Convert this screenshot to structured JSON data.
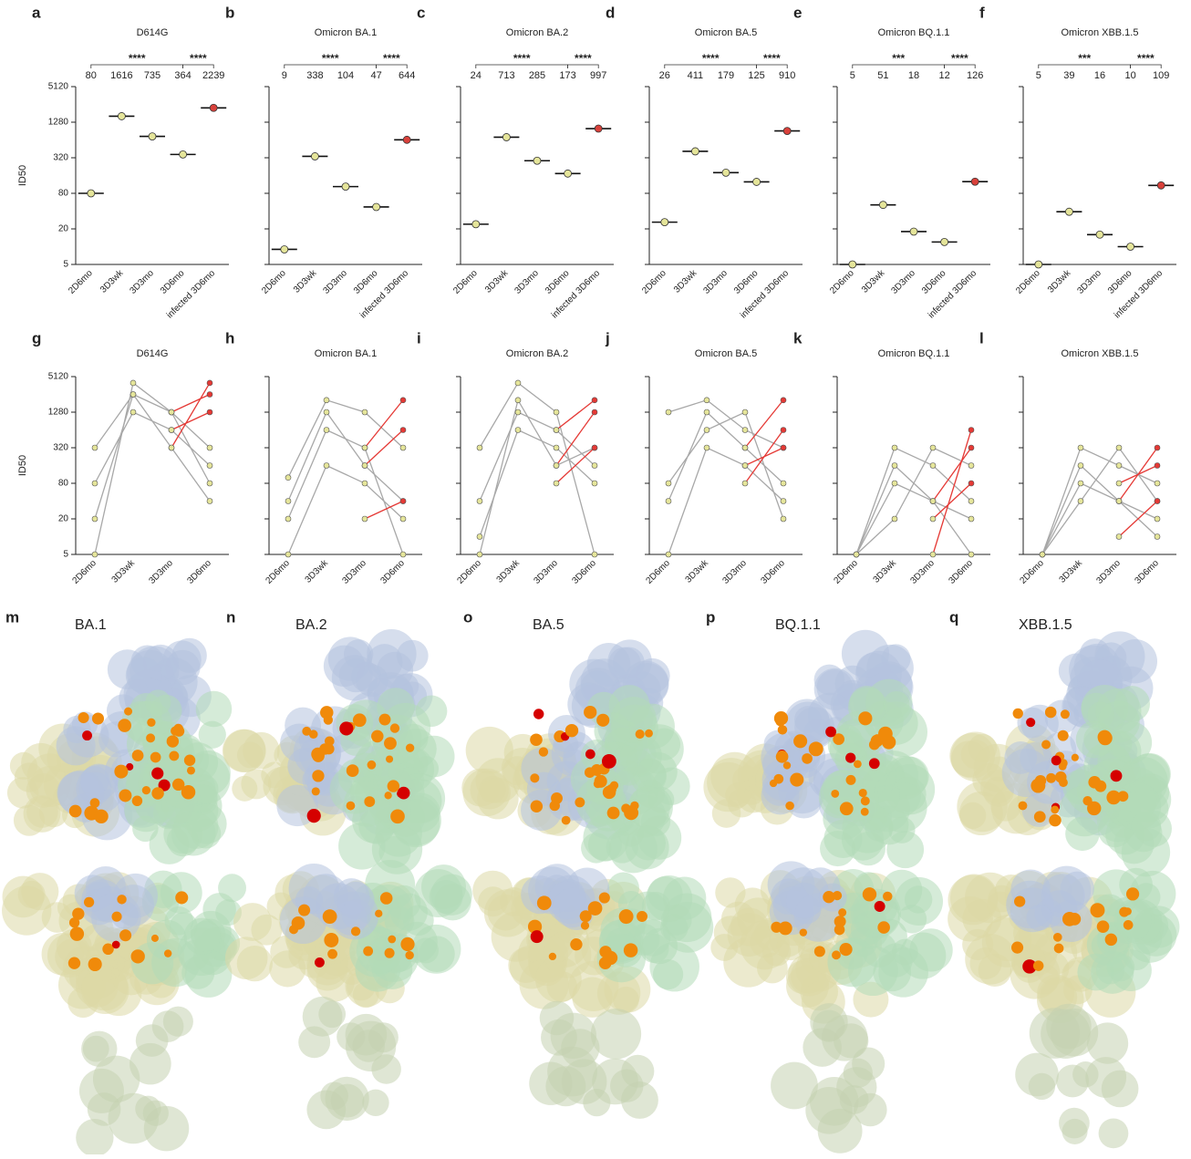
{
  "chart_data": [
    {
      "type": "strip",
      "panel": "a",
      "title": "D614G",
      "ylabel": "ID50",
      "log": true,
      "ylim": [
        5,
        5120
      ],
      "yticks": [
        5,
        20,
        80,
        320,
        1280,
        5120
      ],
      "categories": [
        "2D6mo",
        "3D3wk",
        "3D3mo",
        "3D6mo",
        "infected 3D6mo"
      ],
      "values": [
        80,
        1616,
        735,
        364,
        2239
      ],
      "colors": [
        "#e5e59a",
        "#e5e59a",
        "#e5e59a",
        "#e5e59a",
        "#d9413b"
      ],
      "significance": [
        "****",
        "****"
      ]
    },
    {
      "type": "strip",
      "panel": "b",
      "title": "Omicron BA.1",
      "log": true,
      "ylim": [
        5,
        5120
      ],
      "yticks": [
        5,
        20,
        80,
        320,
        1280,
        5120
      ],
      "categories": [
        "2D6mo",
        "3D3wk",
        "3D3mo",
        "3D6mo",
        "infected 3D6mo"
      ],
      "values": [
        9,
        338,
        104,
        47,
        644
      ],
      "colors": [
        "#e5e59a",
        "#e5e59a",
        "#e5e59a",
        "#e5e59a",
        "#d9413b"
      ],
      "significance": [
        "****",
        "****"
      ]
    },
    {
      "type": "strip",
      "panel": "c",
      "title": "Omicron BA.2",
      "log": true,
      "ylim": [
        5,
        5120
      ],
      "yticks": [
        5,
        20,
        80,
        320,
        1280,
        5120
      ],
      "categories": [
        "2D6mo",
        "3D3wk",
        "3D3mo",
        "3D6mo",
        "infected 3D6mo"
      ],
      "values": [
        24,
        713,
        285,
        173,
        997
      ],
      "colors": [
        "#e5e59a",
        "#e5e59a",
        "#e5e59a",
        "#e5e59a",
        "#d9413b"
      ],
      "significance": [
        "****",
        "****"
      ]
    },
    {
      "type": "strip",
      "panel": "d",
      "title": "Omicron BA.5",
      "log": true,
      "ylim": [
        5,
        5120
      ],
      "yticks": [
        5,
        20,
        80,
        320,
        1280,
        5120
      ],
      "categories": [
        "2D6mo",
        "3D3wk",
        "3D3mo",
        "3D6mo",
        "infected 3D6mo"
      ],
      "values": [
        26,
        411,
        179,
        125,
        910
      ],
      "colors": [
        "#e5e59a",
        "#e5e59a",
        "#e5e59a",
        "#e5e59a",
        "#d9413b"
      ],
      "significance": [
        "****",
        "****"
      ]
    },
    {
      "type": "strip",
      "panel": "e",
      "title": "Omicron BQ.1.1",
      "log": true,
      "ylim": [
        5,
        5120
      ],
      "yticks": [
        5,
        20,
        80,
        320,
        1280,
        5120
      ],
      "categories": [
        "2D6mo",
        "3D3wk",
        "3D3mo",
        "3D6mo",
        "infected 3D6mo"
      ],
      "values": [
        5,
        51,
        18,
        12,
        126
      ],
      "colors": [
        "#e5e59a",
        "#e5e59a",
        "#e5e59a",
        "#e5e59a",
        "#d9413b"
      ],
      "significance": [
        "***",
        "****"
      ]
    },
    {
      "type": "strip",
      "panel": "f",
      "title": "Omicron XBB.1.5",
      "log": true,
      "ylim": [
        5,
        5120
      ],
      "yticks": [
        5,
        20,
        80,
        320,
        1280,
        5120
      ],
      "categories": [
        "2D6mo",
        "3D3wk",
        "3D3mo",
        "3D6mo",
        "infected 3D6mo"
      ],
      "values": [
        5,
        39,
        16,
        10,
        109
      ],
      "colors": [
        "#e5e59a",
        "#e5e59a",
        "#e5e59a",
        "#e5e59a",
        "#d9413b"
      ],
      "significance": [
        "***",
        "****"
      ]
    },
    {
      "type": "line",
      "panel": "g",
      "title": "D614G",
      "ylabel": "ID50",
      "log": true,
      "ylim": [
        5,
        5120
      ],
      "yticks": [
        5,
        20,
        80,
        320,
        1280,
        5120
      ],
      "categories": [
        "2D6mo",
        "3D3wk",
        "3D3mo",
        "3D6mo"
      ],
      "series": [
        {
          "color": "#a8a8a8",
          "values": [
            5,
            4000,
            1280,
            320
          ]
        },
        {
          "color": "#a8a8a8",
          "values": [
            320,
            2560,
            1280,
            80
          ]
        },
        {
          "color": "#a8a8a8",
          "values": [
            80,
            1280,
            640,
            160
          ]
        },
        {
          "color": "#a8a8a8",
          "values": [
            20,
            2560,
            320,
            40
          ]
        },
        {
          "color": "#e53935",
          "values": [
            null,
            null,
            320,
            4000
          ]
        },
        {
          "color": "#e53935",
          "values": [
            null,
            null,
            1280,
            2560
          ]
        },
        {
          "color": "#e53935",
          "values": [
            null,
            null,
            640,
            1280
          ]
        }
      ]
    },
    {
      "type": "line",
      "panel": "h",
      "title": "Omicron BA.1",
      "log": true,
      "ylim": [
        5,
        5120
      ],
      "yticks": [
        5,
        20,
        80,
        320,
        1280,
        5120
      ],
      "categories": [
        "2D6mo",
        "3D3wk",
        "3D3mo",
        "3D6mo"
      ],
      "series": [
        {
          "color": "#a8a8a8",
          "values": [
            100,
            2048,
            1280,
            320
          ]
        },
        {
          "color": "#a8a8a8",
          "values": [
            20,
            640,
            320,
            5
          ]
        },
        {
          "color": "#a8a8a8",
          "values": [
            5,
            160,
            80,
            20
          ]
        },
        {
          "color": "#a8a8a8",
          "values": [
            40,
            1280,
            160,
            40
          ]
        },
        {
          "color": "#e53935",
          "values": [
            null,
            null,
            320,
            2048
          ]
        },
        {
          "color": "#e53935",
          "values": [
            null,
            null,
            20,
            40
          ]
        },
        {
          "color": "#e53935",
          "values": [
            null,
            null,
            160,
            640
          ]
        }
      ]
    },
    {
      "type": "line",
      "panel": "i",
      "title": "Omicron BA.2",
      "log": true,
      "ylim": [
        5,
        5120
      ],
      "yticks": [
        5,
        20,
        80,
        320,
        1280,
        5120
      ],
      "categories": [
        "2D6mo",
        "3D3wk",
        "3D3mo",
        "3D6mo"
      ],
      "series": [
        {
          "color": "#a8a8a8",
          "values": [
            320,
            4000,
            1280,
            5
          ]
        },
        {
          "color": "#a8a8a8",
          "values": [
            40,
            1280,
            640,
            160
          ]
        },
        {
          "color": "#a8a8a8",
          "values": [
            10,
            640,
            320,
            80
          ]
        },
        {
          "color": "#a8a8a8",
          "values": [
            5,
            2048,
            160,
            320
          ]
        },
        {
          "color": "#e53935",
          "values": [
            null,
            null,
            640,
            2048
          ]
        },
        {
          "color": "#e53935",
          "values": [
            null,
            null,
            160,
            1280
          ]
        },
        {
          "color": "#e53935",
          "values": [
            null,
            null,
            80,
            320
          ]
        }
      ]
    },
    {
      "type": "line",
      "panel": "j",
      "title": "Omicron BA.5",
      "log": true,
      "ylim": [
        5,
        5120
      ],
      "yticks": [
        5,
        20,
        80,
        320,
        1280,
        5120
      ],
      "categories": [
        "2D6mo",
        "3D3wk",
        "3D3mo",
        "3D6mo"
      ],
      "series": [
        {
          "color": "#a8a8a8",
          "values": [
            1280,
            2048,
            640,
            320
          ]
        },
        {
          "color": "#a8a8a8",
          "values": [
            40,
            1280,
            320,
            80
          ]
        },
        {
          "color": "#a8a8a8",
          "values": [
            5,
            320,
            160,
            40
          ]
        },
        {
          "color": "#a8a8a8",
          "values": [
            80,
            640,
            1280,
            20
          ]
        },
        {
          "color": "#e53935",
          "values": [
            null,
            null,
            320,
            2048
          ]
        },
        {
          "color": "#e53935",
          "values": [
            null,
            null,
            80,
            640
          ]
        },
        {
          "color": "#e53935",
          "values": [
            null,
            null,
            160,
            320
          ]
        }
      ]
    },
    {
      "type": "line",
      "panel": "k",
      "title": "Omicron BQ.1.1",
      "log": true,
      "ylim": [
        5,
        5120
      ],
      "yticks": [
        5,
        20,
        80,
        320,
        1280,
        5120
      ],
      "categories": [
        "2D6mo",
        "3D3wk",
        "3D3mo",
        "3D6mo"
      ],
      "series": [
        {
          "color": "#a8a8a8",
          "values": [
            5,
            320,
            160,
            40
          ]
        },
        {
          "color": "#a8a8a8",
          "values": [
            5,
            80,
            40,
            20
          ]
        },
        {
          "color": "#a8a8a8",
          "values": [
            5,
            20,
            320,
            160
          ]
        },
        {
          "color": "#a8a8a8",
          "values": [
            5,
            160,
            40,
            5
          ]
        },
        {
          "color": "#e53935",
          "values": [
            null,
            null,
            5,
            640
          ]
        },
        {
          "color": "#e53935",
          "values": [
            null,
            null,
            40,
            320
          ]
        },
        {
          "color": "#e53935",
          "values": [
            null,
            null,
            20,
            80
          ]
        }
      ]
    },
    {
      "type": "line",
      "panel": "l",
      "title": "Omicron XBB.1.5",
      "log": true,
      "ylim": [
        5,
        5120
      ],
      "yticks": [
        5,
        20,
        80,
        320,
        1280,
        5120
      ],
      "categories": [
        "2D6mo",
        "3D3wk",
        "3D3mo",
        "3D6mo"
      ],
      "series": [
        {
          "color": "#a8a8a8",
          "values": [
            5,
            320,
            160,
            80
          ]
        },
        {
          "color": "#a8a8a8",
          "values": [
            5,
            80,
            40,
            20
          ]
        },
        {
          "color": "#a8a8a8",
          "values": [
            5,
            40,
            320,
            40
          ]
        },
        {
          "color": "#a8a8a8",
          "values": [
            5,
            160,
            40,
            10
          ]
        },
        {
          "color": "#e53935",
          "values": [
            null,
            null,
            40,
            320
          ]
        },
        {
          "color": "#e53935",
          "values": [
            null,
            null,
            80,
            160
          ]
        },
        {
          "color": "#e53935",
          "values": [
            null,
            null,
            10,
            40
          ]
        }
      ]
    }
  ],
  "structures": [
    {
      "panel": "m",
      "label": "BA.1"
    },
    {
      "panel": "n",
      "label": "BA.2"
    },
    {
      "panel": "o",
      "label": "BA.5"
    },
    {
      "panel": "p",
      "label": "BQ.1.1"
    },
    {
      "panel": "q",
      "label": "XBB.1.5"
    }
  ]
}
